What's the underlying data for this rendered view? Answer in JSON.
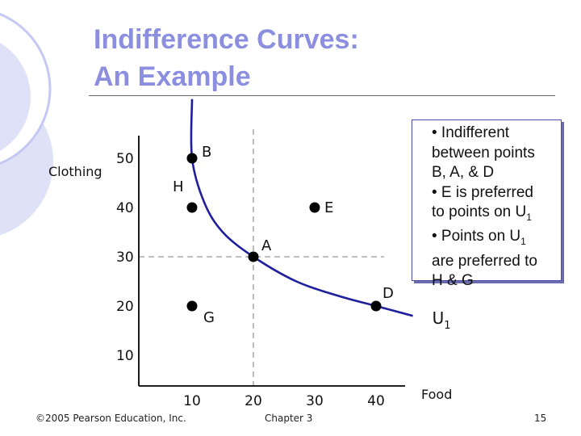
{
  "slide": {
    "title_line1": "Indifference Curves:",
    "title_line2": "An Example",
    "copyright": "©2005 Pearson Education, Inc.",
    "chapter": "Chapter 3",
    "page_number": "15"
  },
  "colors": {
    "title": "#8c8ee0",
    "curve": "#1f1f9e",
    "axis": "#000000",
    "guide": "#999999",
    "box_border": "#4d4daa",
    "deco_light": "#c5c8f2",
    "deco_mid": "#dfe1f7"
  },
  "chart_data": {
    "type": "scatter",
    "xlabel": "Food",
    "ylabel": "Clothing",
    "x_ticks": [
      10,
      20,
      30,
      40
    ],
    "y_ticks": [
      10,
      20,
      30,
      40,
      50
    ],
    "points": [
      {
        "label": "B",
        "x": 10,
        "y": 50
      },
      {
        "label": "H",
        "x": 10,
        "y": 40
      },
      {
        "label": "E",
        "x": 30,
        "y": 40
      },
      {
        "label": "A",
        "x": 20,
        "y": 30
      },
      {
        "label": "G",
        "x": 10,
        "y": 20
      },
      {
        "label": "D",
        "x": 40,
        "y": 20
      }
    ],
    "curve": {
      "label": "U",
      "label_subscript": "1",
      "points": [
        [
          10,
          62
        ],
        [
          10,
          50
        ],
        [
          12,
          41
        ],
        [
          15,
          35
        ],
        [
          20,
          30
        ],
        [
          27,
          25
        ],
        [
          34,
          22
        ],
        [
          40,
          20
        ],
        [
          46,
          18
        ]
      ]
    },
    "guides": [
      {
        "x": 20,
        "y": 30
      }
    ]
  },
  "notes": {
    "line1": "• Indifferent",
    "line2": "between points",
    "line3": "B, A, & D",
    "line4": "• E  is preferred",
    "line5": "to points on U",
    "line5_sub": "1",
    "line6": "• Points on U",
    "line6_sub": "1",
    "line7": "are preferred to",
    "line8": "H & G"
  }
}
